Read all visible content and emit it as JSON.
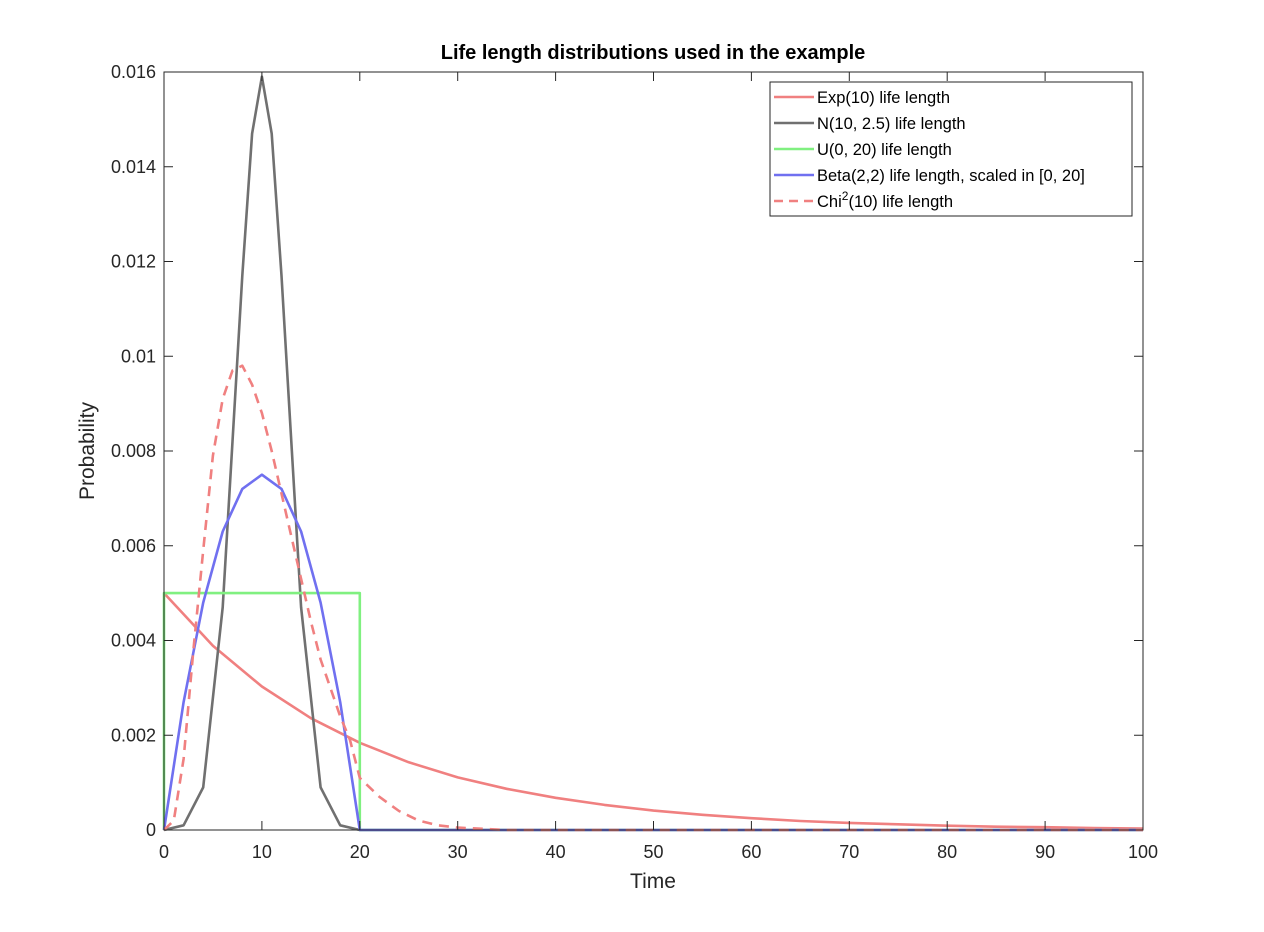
{
  "chart_data": {
    "type": "line",
    "title": "Life length distributions used in the example",
    "xlabel": "Time",
    "ylabel": "Probability",
    "xlim": [
      0,
      100
    ],
    "ylim": [
      0,
      0.016
    ],
    "xticks": [
      0,
      10,
      20,
      30,
      40,
      50,
      60,
      70,
      80,
      90,
      100
    ],
    "xtick_labels": [
      "0",
      "10",
      "20",
      "30",
      "40",
      "50",
      "60",
      "70",
      "80",
      "90",
      "100"
    ],
    "yticks": [
      0,
      0.002,
      0.004,
      0.006,
      0.008,
      0.01,
      0.012,
      0.014,
      0.016
    ],
    "ytick_labels": [
      "0",
      "0.002",
      "0.004",
      "0.006",
      "0.008",
      "0.01",
      "0.012",
      "0.014",
      "0.016"
    ],
    "grid": false,
    "legend_position": "top-right",
    "series": [
      {
        "name": "Exp(10) life length",
        "color": "#f08080",
        "style": "solid",
        "x": [
          0,
          5,
          10,
          15,
          20,
          25,
          30,
          35,
          40,
          45,
          50,
          55,
          60,
          65,
          70,
          75,
          80,
          85,
          90,
          95,
          100
        ],
        "y": [
          0.005,
          0.00389,
          0.00303,
          0.00236,
          0.00184,
          0.00143,
          0.00111,
          0.00087,
          0.00068,
          0.00053,
          0.00041,
          0.00032,
          0.00025,
          0.00019,
          0.00015,
          0.00012,
          9e-05,
          7e-05,
          6e-05,
          4e-05,
          3e-05
        ]
      },
      {
        "name": "N(10, 2.5) life length",
        "color": "#707070",
        "style": "solid",
        "x": [
          0,
          2,
          4,
          6,
          7,
          8,
          9,
          10,
          11,
          12,
          13,
          14,
          16,
          18,
          20,
          30,
          40,
          50,
          60,
          70,
          80,
          90,
          100
        ],
        "y": [
          0,
          0.0001,
          0.0009,
          0.0047,
          0.0082,
          0.0117,
          0.0147,
          0.0159,
          0.0147,
          0.0117,
          0.0082,
          0.0047,
          0.0009,
          0.0001,
          0,
          0,
          0,
          0,
          0,
          0,
          0,
          0,
          0
        ]
      },
      {
        "name": "U(0, 20) life length",
        "color": "#80f080",
        "style": "solid",
        "x": [
          0,
          0,
          20,
          20,
          100
        ],
        "y": [
          0,
          0.005,
          0.005,
          0,
          0
        ]
      },
      {
        "name": "Beta(2,2) life length, scaled in [0, 20]",
        "color": "#7070f0",
        "style": "solid",
        "x": [
          0,
          2,
          4,
          6,
          8,
          10,
          12,
          14,
          16,
          18,
          20,
          30,
          40,
          50,
          60,
          70,
          80,
          90,
          100
        ],
        "y": [
          0,
          0.0027,
          0.0048,
          0.0063,
          0.0072,
          0.0075,
          0.0072,
          0.0063,
          0.0048,
          0.0027,
          0,
          0,
          0,
          0,
          0,
          0,
          0,
          0,
          0
        ]
      },
      {
        "name": "Chi<sup>2</sup>(10) life length",
        "color": "#f08080",
        "style": "dashed",
        "x": [
          0,
          1,
          2,
          3,
          4,
          5,
          6,
          7,
          8,
          9,
          10,
          11,
          12,
          13,
          14,
          15,
          16,
          17,
          18,
          19,
          20,
          22,
          24,
          26,
          28,
          30,
          35,
          40,
          50,
          60,
          70,
          80,
          90,
          100
        ],
        "y": [
          0,
          0.0002,
          0.0015,
          0.0038,
          0.0059,
          0.0079,
          0.0091,
          0.0097,
          0.0098,
          0.0094,
          0.0088,
          0.008,
          0.0071,
          0.0062,
          0.0053,
          0.0044,
          0.0036,
          0.003,
          0.0024,
          0.0019,
          0.0011,
          0.0007,
          0.0004,
          0.0002,
          0.0001,
          5e-05,
          0,
          0,
          0,
          0,
          0,
          0,
          0,
          0
        ]
      }
    ]
  },
  "legend": {
    "entries": [
      {
        "text": "Exp(10) life length",
        "color": "#f08080",
        "dash": ""
      },
      {
        "text": "N(10, 2.5) life length",
        "color": "#707070",
        "dash": ""
      },
      {
        "text": "U(0, 20) life length",
        "color": "#80f080",
        "dash": ""
      },
      {
        "text": "Beta(2,2) life length, scaled in [0, 20]",
        "color": "#7070f0",
        "dash": ""
      },
      {
        "text": "Chi<sup>2</sup>(10) life length",
        "color": "#f08080",
        "dash": "9,6",
        "base": "Chi",
        "sup": "2",
        "rest": "(10) life length"
      }
    ]
  }
}
